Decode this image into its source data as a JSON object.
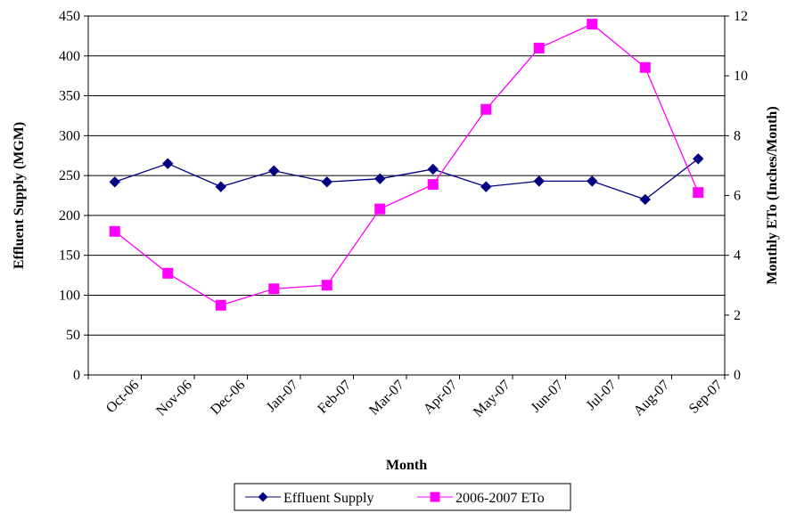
{
  "chart_data": {
    "type": "line",
    "categories": [
      "Oct-06",
      "Nov-06",
      "Dec-06",
      "Jan-07",
      "Feb-07",
      "Mar-07",
      "Apr-07",
      "May-07",
      "Jun-07",
      "Jul-07",
      "Aug-07",
      "Sep-07"
    ],
    "xlabel": "Month",
    "ylabel": "Effluent Supply (MGM)",
    "y2label": "Monthly ETo (Inches/Month)",
    "ylim": [
      0,
      450
    ],
    "y2lim": [
      0,
      12
    ],
    "y_ticks": [
      "0",
      "50",
      "100",
      "150",
      "200",
      "250",
      "300",
      "350",
      "400",
      "450"
    ],
    "y2_ticks": [
      "0",
      "2",
      "4",
      "6",
      "8",
      "10",
      "12"
    ],
    "grid": "horizontal",
    "legend_position": "bottom",
    "series": [
      {
        "name": "Effluent Supply",
        "axis": "left",
        "color": "#000080",
        "marker": "diamond",
        "values": [
          242,
          265,
          236,
          256,
          242,
          246,
          258,
          236,
          243,
          243,
          220,
          271
        ]
      },
      {
        "name": "2006-2007 ETo",
        "axis": "right",
        "color": "#ff00ff",
        "marker": "square",
        "values": [
          4.8,
          3.4,
          2.33,
          2.88,
          3.0,
          5.55,
          6.37,
          8.88,
          10.93,
          11.73,
          10.28,
          6.1
        ]
      }
    ]
  }
}
